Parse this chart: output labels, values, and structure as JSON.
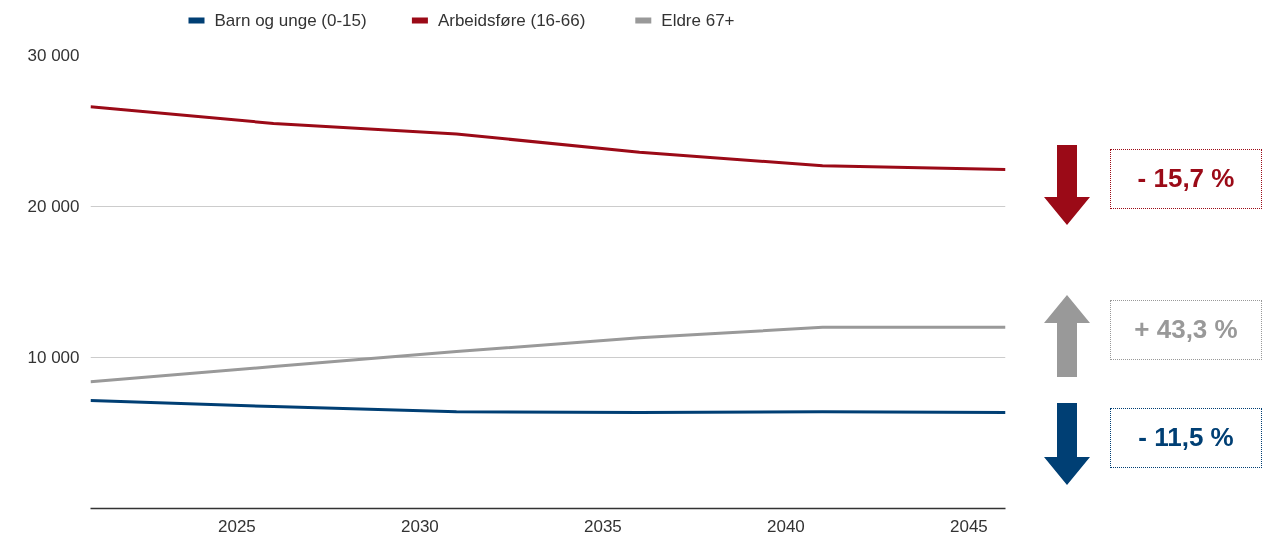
{
  "chart_data": {
    "type": "line",
    "x": [
      2021,
      2026,
      2031,
      2036,
      2041,
      2046
    ],
    "series": [
      {
        "name": "Barn og unge (0-15)",
        "color": "#003f74",
        "values": [
          7150,
          6750,
          6400,
          6350,
          6400,
          6350
        ]
      },
      {
        "name": "Arbeidsføre (16-66)",
        "color": "#9b0a17",
        "values": [
          26600,
          25500,
          24800,
          23600,
          22700,
          22450
        ]
      },
      {
        "name": "Eldre 67+",
        "color": "#999999",
        "values": [
          8400,
          9400,
          10400,
          11300,
          12000,
          12000
        ]
      }
    ],
    "xlim": [
      2021,
      2046
    ],
    "xticks": [
      2025,
      2030,
      2035,
      2040,
      2045
    ],
    "ylim": [
      0,
      30000
    ],
    "yticks": [
      {
        "value": 10000,
        "label": "10 000"
      },
      {
        "value": 20000,
        "label": "20 000"
      },
      {
        "value": 30000,
        "label": "30 000"
      }
    ],
    "grid": "y",
    "legend": "top",
    "line_style": "solid",
    "annotations": [
      "- 15,7 %",
      "+ 43,3 %",
      "- 11,5 %"
    ]
  }
}
